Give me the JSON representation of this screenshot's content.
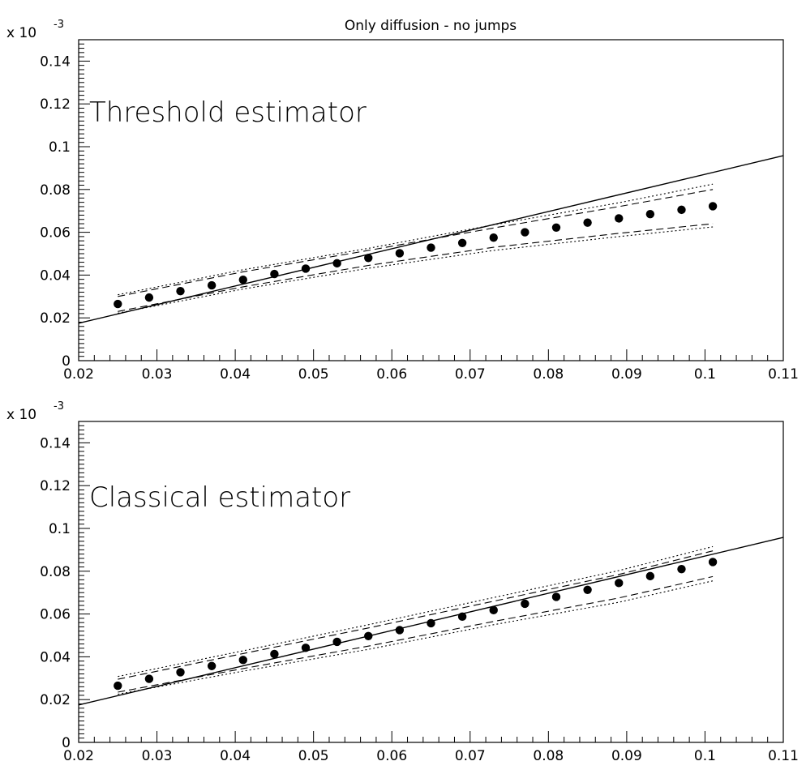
{
  "title": "Only diffusion - no jumps",
  "chart_data": [
    {
      "type": "scatter",
      "label": "Threshold estimator",
      "multiplier_base": "x 10",
      "multiplier_exp": "-3",
      "xlim": [
        0.02,
        0.11
      ],
      "ylim": [
        0,
        0.15
      ],
      "x_ticks": [
        "0.02",
        "0.03",
        "0.04",
        "0.05",
        "0.06",
        "0.07",
        "0.08",
        "0.09",
        "0.1",
        "0.11"
      ],
      "y_ticks": [
        "0",
        "0.02",
        "0.04",
        "0.06",
        "0.08",
        "0.1",
        "0.12",
        "0.14"
      ],
      "grid": false,
      "series": [
        {
          "style": "points",
          "x": [
            0.025,
            0.029,
            0.033,
            0.037,
            0.041,
            0.045,
            0.049,
            0.053,
            0.057,
            0.061,
            0.065,
            0.069,
            0.073,
            0.077,
            0.081,
            0.085,
            0.089,
            0.093,
            0.097,
            0.101
          ],
          "y": [
            0.0265,
            0.0295,
            0.0325,
            0.0352,
            0.0378,
            0.0405,
            0.043,
            0.0455,
            0.048,
            0.0502,
            0.0528,
            0.055,
            0.0575,
            0.06,
            0.0622,
            0.0645,
            0.0665,
            0.0685,
            0.0705,
            0.0722
          ]
        },
        {
          "style": "solid",
          "x": [
            0.02,
            0.11
          ],
          "y": [
            0.0175,
            0.0958
          ]
        },
        {
          "style": "dashed",
          "x": [
            0.025,
            0.041,
            0.057,
            0.073,
            0.089,
            0.101
          ],
          "y": [
            0.03,
            0.0415,
            0.0515,
            0.062,
            0.072,
            0.08
          ]
        },
        {
          "style": "dashed",
          "x": [
            0.025,
            0.041,
            0.057,
            0.073,
            0.089,
            0.101
          ],
          "y": [
            0.023,
            0.0345,
            0.0445,
            0.053,
            0.0595,
            0.064
          ]
        },
        {
          "style": "dotted",
          "x": [
            0.025,
            0.041,
            0.057,
            0.073,
            0.089,
            0.101
          ],
          "y": [
            0.0308,
            0.0425,
            0.0525,
            0.0635,
            0.0738,
            0.0825
          ]
        },
        {
          "style": "dotted",
          "x": [
            0.025,
            0.041,
            0.057,
            0.073,
            0.089,
            0.101
          ],
          "y": [
            0.0222,
            0.0335,
            0.0432,
            0.0515,
            0.058,
            0.0625
          ]
        }
      ]
    },
    {
      "type": "scatter",
      "label": "Classical estimator",
      "multiplier_base": "x 10",
      "multiplier_exp": "-3",
      "xlim": [
        0.02,
        0.11
      ],
      "ylim": [
        0,
        0.15
      ],
      "x_ticks": [
        "0.02",
        "0.03",
        "0.04",
        "0.05",
        "0.06",
        "0.07",
        "0.08",
        "0.09",
        "0.1",
        "0.11"
      ],
      "y_ticks": [
        "0",
        "0.02",
        "0.04",
        "0.06",
        "0.08",
        "0.1",
        "0.12",
        "0.14"
      ],
      "grid": false,
      "series": [
        {
          "style": "points",
          "x": [
            0.025,
            0.029,
            0.033,
            0.037,
            0.041,
            0.045,
            0.049,
            0.053,
            0.057,
            0.061,
            0.065,
            0.069,
            0.073,
            0.077,
            0.081,
            0.085,
            0.089,
            0.093,
            0.097,
            0.101
          ],
          "y": [
            0.0265,
            0.0297,
            0.0328,
            0.0357,
            0.0385,
            0.0413,
            0.0442,
            0.047,
            0.0497,
            0.0525,
            0.0557,
            0.0588,
            0.0618,
            0.0648,
            0.068,
            0.0713,
            0.0745,
            0.0777,
            0.081,
            0.0843
          ]
        },
        {
          "style": "solid",
          "x": [
            0.02,
            0.11
          ],
          "y": [
            0.0175,
            0.0958
          ]
        },
        {
          "style": "dashed",
          "x": [
            0.025,
            0.041,
            0.057,
            0.073,
            0.089,
            0.101
          ],
          "y": [
            0.0295,
            0.0415,
            0.0535,
            0.066,
            0.0785,
            0.0895
          ]
        },
        {
          "style": "dashed",
          "x": [
            0.025,
            0.041,
            0.057,
            0.073,
            0.089,
            0.101
          ],
          "y": [
            0.0235,
            0.0345,
            0.045,
            0.0565,
            0.0675,
            0.0775
          ]
        },
        {
          "style": "dotted",
          "x": [
            0.025,
            0.041,
            0.057,
            0.073,
            0.089,
            0.101
          ],
          "y": [
            0.0308,
            0.0428,
            0.055,
            0.0677,
            0.0803,
            0.0915
          ]
        },
        {
          "style": "dotted",
          "x": [
            0.025,
            0.041,
            0.057,
            0.073,
            0.089,
            0.101
          ],
          "y": [
            0.0225,
            0.0333,
            0.0435,
            0.055,
            0.0655,
            0.0755
          ]
        }
      ]
    }
  ]
}
